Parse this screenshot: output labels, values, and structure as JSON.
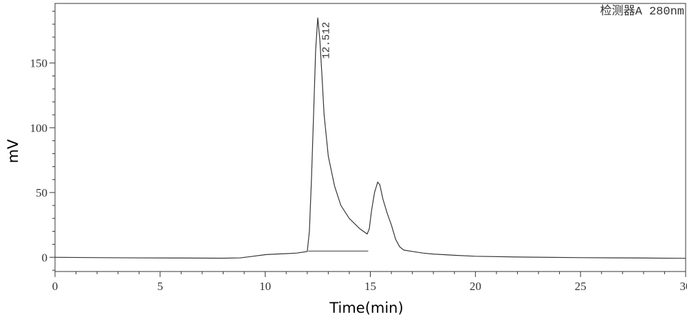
{
  "chart_data": {
    "type": "line",
    "title": "",
    "xlabel": "Time(min)",
    "ylabel": "mV",
    "detector_label": "检测器A 280nm",
    "xlim": [
      0,
      30
    ],
    "ylim": [
      -11,
      196
    ],
    "x_ticks": [
      0,
      5,
      10,
      15,
      20,
      25,
      30
    ],
    "y_ticks": [
      0,
      50,
      100,
      150
    ],
    "grid": false,
    "series": [
      {
        "x": [
          0,
          2,
          4,
          6,
          8,
          8.8,
          9.3,
          10,
          10.5,
          11,
          11.5,
          12,
          12.1,
          12.2,
          12.3,
          12.4,
          12.5,
          12.6,
          12.7,
          12.8,
          13.0,
          13.3,
          13.6,
          14.0,
          14.5,
          14.85,
          14.95,
          15.05,
          15.2,
          15.35,
          15.45,
          15.6,
          15.8,
          16.0,
          16.2,
          16.4,
          16.6,
          17,
          17.5,
          18,
          19,
          20,
          22,
          25,
          28,
          30
        ],
        "y": [
          0,
          -0.3,
          -0.5,
          -0.6,
          -0.7,
          -0.5,
          0.5,
          2,
          2.5,
          2.8,
          3.2,
          4.5,
          20,
          60,
          110,
          160,
          185,
          168,
          140,
          110,
          78,
          55,
          40,
          30,
          22,
          18,
          22,
          35,
          50,
          58,
          56,
          45,
          34,
          25,
          14,
          8,
          5.5,
          4.5,
          3.2,
          2.5,
          1.5,
          0.8,
          0.2,
          -0.3,
          -0.6,
          -0.8
        ]
      }
    ],
    "baseline_segment": {
      "x": [
        12.05,
        14.9
      ],
      "y": [
        4.8,
        4.8
      ]
    },
    "peaks": [
      {
        "label": "12.512",
        "x": 12.512,
        "y": 185
      }
    ]
  }
}
